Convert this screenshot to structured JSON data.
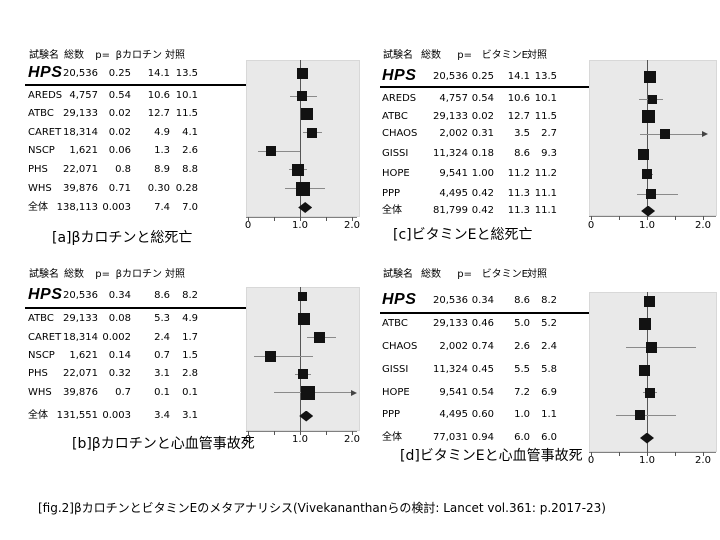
{
  "figure_caption": "[fig.2]βカロチンとビタミンEのメタアナリシス(Vivekananthanらの検討: Lancet vol.361: p.2017-23)",
  "colors": {
    "marker": "#121212",
    "ci_line": "#8a8a8a",
    "ref_line": "#555555",
    "axis": "#808080",
    "tick": "#555555",
    "plot_bg": "#e9e9e9",
    "separator": "#000000"
  },
  "panels": [
    {
      "id": "a",
      "caption": "[a]βカロチンと総死亡",
      "columns": [
        "試験名",
        "総数",
        "p=",
        "βカロチン",
        "対照"
      ],
      "rows": [
        {
          "trial": "HPS",
          "total": "20,536",
          "p": "0.25",
          "treatment": "14.1",
          "control": "13.5"
        },
        {
          "trial": "AREDS",
          "total": "4,757",
          "p": "0.54",
          "treatment": "10.6",
          "control": "10.1"
        },
        {
          "trial": "ATBC",
          "total": "29,133",
          "p": "0.02",
          "treatment": "12.7",
          "control": "11.5"
        },
        {
          "trial": "CARET",
          "total": "18,314",
          "p": "0.02",
          "treatment": "4.9",
          "control": "4.1"
        },
        {
          "trial": "NSCP",
          "total": "1,621",
          "p": "0.06",
          "treatment": "1.3",
          "control": "2.6"
        },
        {
          "trial": "PHS",
          "total": "22,071",
          "p": "0.8",
          "treatment": "8.9",
          "control": "8.8"
        },
        {
          "trial": "WHS",
          "total": "39,876",
          "p": "0.71",
          "treatment": "0.30",
          "control": "0.28"
        },
        {
          "trial": "全体",
          "total": "138,113",
          "p": "0.003",
          "treatment": "7.4",
          "control": "7.0"
        }
      ]
    },
    {
      "id": "b",
      "caption": "[b]βカロチンと心血管事故死",
      "columns": [
        "試験名",
        "総数",
        "p=",
        "βカロチン",
        "対照"
      ],
      "rows": [
        {
          "trial": "HPS",
          "total": "20,536",
          "p": "0.34",
          "treatment": "8.6",
          "control": "8.2"
        },
        {
          "trial": "ATBC",
          "total": "29,133",
          "p": "0.08",
          "treatment": "5.3",
          "control": "4.9"
        },
        {
          "trial": "CARET",
          "total": "18,314",
          "p": "0.002",
          "treatment": "2.4",
          "control": "1.7"
        },
        {
          "trial": "NSCP",
          "total": "1,621",
          "p": "0.14",
          "treatment": "0.7",
          "control": "1.5"
        },
        {
          "trial": "PHS",
          "total": "22,071",
          "p": "0.32",
          "treatment": "3.1",
          "control": "2.8"
        },
        {
          "trial": "WHS",
          "total": "39,876",
          "p": "0.7",
          "treatment": "0.1",
          "control": "0.1"
        },
        {
          "trial": "全体",
          "total": "131,551",
          "p": "0.003",
          "treatment": "3.4",
          "control": "3.1"
        }
      ]
    },
    {
      "id": "c",
      "caption": "[c]ビタミンEと総死亡",
      "columns": [
        "試験名",
        "総数",
        "p=",
        "ビタミンE",
        "対照"
      ],
      "rows": [
        {
          "trial": "HPS",
          "total": "20,536",
          "p": "0.25",
          "treatment": "14.1",
          "control": "13.5"
        },
        {
          "trial": "AREDS",
          "total": "4,757",
          "p": "0.54",
          "treatment": "10.6",
          "control": "10.1"
        },
        {
          "trial": "ATBC",
          "total": "29,133",
          "p": "0.02",
          "treatment": "12.7",
          "control": "11.5"
        },
        {
          "trial": "CHAOS",
          "total": "2,002",
          "p": "0.31",
          "treatment": "3.5",
          "control": "2.7"
        },
        {
          "trial": "GISSI",
          "total": "11,324",
          "p": "0.18",
          "treatment": "8.6",
          "control": "9.3"
        },
        {
          "trial": "HOPE",
          "total": "9,541",
          "p": "1.00",
          "treatment": "11.2",
          "control": "11.2"
        },
        {
          "trial": "PPP",
          "total": "4,495",
          "p": "0.42",
          "treatment": "11.3",
          "control": "11.1"
        },
        {
          "trial": "全体",
          "total": "81,799",
          "p": "0.42",
          "treatment": "11.3",
          "control": "11.1"
        }
      ]
    },
    {
      "id": "d",
      "caption": "[d]ビタミンEと心血管事故死",
      "columns": [
        "試験名",
        "総数",
        "p=",
        "ビタミンE",
        "対照"
      ],
      "rows": [
        {
          "trial": "HPS",
          "total": "20,536",
          "p": "0.34",
          "treatment": "8.6",
          "control": "8.2"
        },
        {
          "trial": "ATBC",
          "total": "29,133",
          "p": "0.46",
          "treatment": "5.0",
          "control": "5.2"
        },
        {
          "trial": "CHAOS",
          "total": "2,002",
          "p": "0.74",
          "treatment": "2.6",
          "control": "2.4"
        },
        {
          "trial": "GISSI",
          "total": "11,324",
          "p": "0.45",
          "treatment": "5.5",
          "control": "5.8"
        },
        {
          "trial": "HOPE",
          "total": "9,541",
          "p": "0.54",
          "treatment": "7.2",
          "control": "6.9"
        },
        {
          "trial": "PPP",
          "total": "4,495",
          "p": "0.60",
          "treatment": "1.0",
          "control": "1.1"
        },
        {
          "trial": "全体",
          "total": "77,031",
          "p": "0.94",
          "treatment": "6.0",
          "control": "6.0"
        }
      ]
    }
  ],
  "chart_data": [
    {
      "id": "a",
      "type": "scatter",
      "subtype": "forest-plot",
      "title": "[a]βカロチンと総死亡",
      "x_axis": {
        "min": 0,
        "max": 2.0,
        "reference_line": 1.0,
        "ticks": [
          0,
          0.5,
          1.0,
          1.5,
          2.0
        ],
        "tick_labels": [
          "0",
          "1.0",
          "2.0"
        ],
        "tick_label_values": [
          0,
          1.0,
          2.0
        ]
      },
      "points": [
        {
          "trial": "HPS",
          "est": 1.05,
          "lo": 0.97,
          "hi": 1.13,
          "marker": "square",
          "size": 11,
          "arrow_right": false
        },
        {
          "trial": "AREDS",
          "est": 1.04,
          "lo": 0.8,
          "hi": 1.33,
          "marker": "square",
          "size": 10,
          "arrow_right": false
        },
        {
          "trial": "ATBC",
          "est": 1.13,
          "lo": 1.03,
          "hi": 1.23,
          "marker": "square",
          "size": 12,
          "arrow_right": false
        },
        {
          "trial": "CARET",
          "est": 1.23,
          "lo": 1.06,
          "hi": 1.42,
          "marker": "square",
          "size": 10,
          "arrow_right": false
        },
        {
          "trial": "NSCP",
          "est": 0.44,
          "lo": 0.19,
          "hi": 1.0,
          "marker": "square",
          "size": 10,
          "arrow_right": false
        },
        {
          "trial": "PHS",
          "est": 0.97,
          "lo": 0.78,
          "hi": 1.13,
          "marker": "square",
          "size": 12,
          "arrow_right": false
        },
        {
          "trial": "WHS",
          "est": 1.06,
          "lo": 0.72,
          "hi": 1.48,
          "marker": "square",
          "size": 14,
          "arrow_right": false
        },
        {
          "trial": "全体",
          "est": 1.1,
          "lo": 1.03,
          "hi": 1.17,
          "marker": "diamond",
          "size": 11,
          "arrow_right": false
        }
      ]
    },
    {
      "id": "b",
      "type": "scatter",
      "subtype": "forest-plot",
      "title": "[b]βカロチンと心血管事故死",
      "x_axis": {
        "min": 0,
        "max": 2.0,
        "reference_line": 1.0,
        "ticks": [
          0,
          0.5,
          1.0,
          1.5,
          2.0
        ],
        "tick_labels": [
          "0",
          "1.0",
          "2.0"
        ],
        "tick_label_values": [
          0,
          1.0,
          2.0
        ]
      },
      "points": [
        {
          "trial": "HPS",
          "est": 1.04,
          "lo": 0.96,
          "hi": 1.12,
          "marker": "square",
          "size": 9,
          "arrow_right": false
        },
        {
          "trial": "ATBC",
          "est": 1.08,
          "lo": 0.99,
          "hi": 1.17,
          "marker": "square",
          "size": 12,
          "arrow_right": false
        },
        {
          "trial": "CARET",
          "est": 1.37,
          "lo": 1.13,
          "hi": 1.7,
          "marker": "square",
          "size": 11,
          "arrow_right": false
        },
        {
          "trial": "NSCP",
          "est": 0.44,
          "lo": 0.12,
          "hi": 1.25,
          "marker": "square",
          "size": 11,
          "arrow_right": false
        },
        {
          "trial": "PHS",
          "est": 1.06,
          "lo": 0.91,
          "hi": 1.22,
          "marker": "square",
          "size": 10,
          "arrow_right": false
        },
        {
          "trial": "WHS",
          "est": 1.15,
          "lo": 0.5,
          "hi": 2.0,
          "marker": "square",
          "size": 14,
          "arrow_right": true
        },
        {
          "trial": "全体",
          "est": 1.12,
          "lo": 1.04,
          "hi": 1.2,
          "marker": "diamond",
          "size": 11,
          "arrow_right": false
        }
      ]
    },
    {
      "id": "c",
      "type": "scatter",
      "subtype": "forest-plot",
      "title": "[c]ビタミンEと総死亡",
      "x_axis": {
        "min": 0,
        "max": 2.0,
        "reference_line": 1.0,
        "ticks": [
          0,
          0.5,
          1.0,
          1.5,
          2.0
        ],
        "tick_labels": [
          "0",
          "1.0",
          "2.0"
        ],
        "tick_label_values": [
          0,
          1.0,
          2.0
        ]
      },
      "points": [
        {
          "trial": "HPS",
          "est": 1.06,
          "lo": 0.99,
          "hi": 1.13,
          "marker": "square",
          "size": 12,
          "arrow_right": false
        },
        {
          "trial": "AREDS",
          "est": 1.1,
          "lo": 0.85,
          "hi": 1.28,
          "marker": "square",
          "size": 9,
          "arrow_right": false
        },
        {
          "trial": "ATBC",
          "est": 1.02,
          "lo": 0.95,
          "hi": 1.1,
          "marker": "square",
          "size": 13,
          "arrow_right": false
        },
        {
          "trial": "CHAOS",
          "est": 1.32,
          "lo": 0.88,
          "hi": 2.0,
          "marker": "square",
          "size": 10,
          "arrow_right": true
        },
        {
          "trial": "GISSI",
          "est": 0.93,
          "lo": 0.86,
          "hi": 1.0,
          "marker": "square",
          "size": 11,
          "arrow_right": false
        },
        {
          "trial": "HOPE",
          "est": 1.0,
          "lo": 0.91,
          "hi": 1.1,
          "marker": "square",
          "size": 10,
          "arrow_right": false
        },
        {
          "trial": "PPP",
          "est": 1.08,
          "lo": 0.82,
          "hi": 1.55,
          "marker": "square",
          "size": 10,
          "arrow_right": false
        },
        {
          "trial": "全体",
          "est": 1.02,
          "lo": 0.97,
          "hi": 1.07,
          "marker": "diamond",
          "size": 11,
          "arrow_right": false
        }
      ]
    },
    {
      "id": "d",
      "type": "scatter",
      "subtype": "forest-plot",
      "title": "[d]ビタミンEと心血管事故死",
      "x_axis": {
        "min": 0,
        "max": 2.0,
        "reference_line": 1.0,
        "ticks": [
          0,
          0.5,
          1.0,
          1.5,
          2.0
        ],
        "tick_labels": [
          "0",
          "1.0",
          "2.0"
        ],
        "tick_label_values": [
          0,
          1.0,
          2.0
        ]
      },
      "points": [
        {
          "trial": "HPS",
          "est": 1.05,
          "lo": 0.97,
          "hi": 1.13,
          "marker": "square",
          "size": 11,
          "arrow_right": false
        },
        {
          "trial": "ATBC",
          "est": 0.97,
          "lo": 0.89,
          "hi": 1.05,
          "marker": "square",
          "size": 12,
          "arrow_right": false
        },
        {
          "trial": "CHAOS",
          "est": 1.08,
          "lo": 0.63,
          "hi": 1.88,
          "marker": "square",
          "size": 11,
          "arrow_right": false
        },
        {
          "trial": "GISSI",
          "est": 0.95,
          "lo": 0.87,
          "hi": 1.03,
          "marker": "square",
          "size": 11,
          "arrow_right": false
        },
        {
          "trial": "HOPE",
          "est": 1.05,
          "lo": 0.93,
          "hi": 1.17,
          "marker": "square",
          "size": 10,
          "arrow_right": false
        },
        {
          "trial": "PPP",
          "est": 0.87,
          "lo": 0.45,
          "hi": 1.52,
          "marker": "square",
          "size": 10,
          "arrow_right": false
        },
        {
          "trial": "全体",
          "est": 1.0,
          "lo": 0.95,
          "hi": 1.05,
          "marker": "diamond",
          "size": 11,
          "arrow_right": false
        }
      ]
    }
  ]
}
